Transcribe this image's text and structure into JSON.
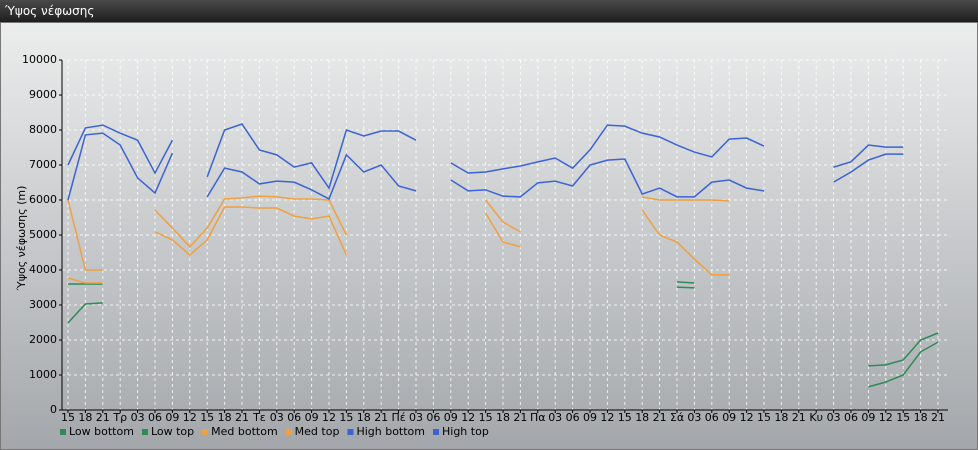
{
  "chart_data": {
    "type": "line",
    "title": "Ύψος νέφωσης",
    "y_label": "Ύψος νέφωσης (m)",
    "categories": [
      "15",
      "18",
      "21",
      "Τρ",
      "03",
      "06",
      "09",
      "12",
      "15",
      "18",
      "21",
      "Τε",
      "03",
      "06",
      "09",
      "12",
      "15",
      "18",
      "21",
      "Πέ",
      "03",
      "06",
      "09",
      "12",
      "15",
      "18",
      "21",
      "Πα",
      "03",
      "06",
      "09",
      "12",
      "15",
      "18",
      "21",
      "Σά",
      "03",
      "06",
      "09",
      "12",
      "15",
      "18",
      "21",
      "Κυ",
      "03",
      "06",
      "09",
      "12",
      "15",
      "18",
      "21"
    ],
    "ylim": [
      0,
      10000
    ],
    "yticks": [
      0,
      1000,
      2000,
      3000,
      4000,
      5000,
      6000,
      7000,
      8000,
      9000,
      10000
    ],
    "grid": true,
    "series": [
      {
        "name": "Low bottom",
        "color": "#2e8b57",
        "values": [
          2490,
          3030,
          3060,
          null,
          null,
          null,
          null,
          null,
          null,
          null,
          null,
          null,
          null,
          null,
          null,
          null,
          null,
          null,
          null,
          null,
          null,
          null,
          null,
          null,
          null,
          null,
          null,
          null,
          null,
          null,
          null,
          null,
          null,
          null,
          null,
          3510,
          3490,
          null,
          null,
          null,
          null,
          null,
          null,
          null,
          null,
          null,
          660,
          800,
          1000,
          1660,
          1940
        ]
      },
      {
        "name": "Low top",
        "color": "#2e8b57",
        "values": [
          3600,
          3600,
          3600,
          null,
          null,
          null,
          null,
          null,
          null,
          null,
          null,
          null,
          null,
          null,
          null,
          null,
          null,
          null,
          null,
          null,
          null,
          null,
          null,
          null,
          null,
          null,
          null,
          null,
          null,
          null,
          null,
          null,
          null,
          null,
          null,
          3660,
          3630,
          null,
          null,
          null,
          null,
          null,
          null,
          null,
          null,
          null,
          1260,
          1290,
          1430,
          2000,
          2200
        ]
      },
      {
        "name": "Med bottom",
        "color": "#f0a040",
        "values": [
          3770,
          3630,
          3630,
          null,
          null,
          5090,
          4860,
          4430,
          4860,
          5800,
          5800,
          5770,
          5770,
          5540,
          5460,
          5540,
          4430,
          null,
          null,
          null,
          null,
          null,
          null,
          null,
          5630,
          4800,
          4660,
          null,
          null,
          null,
          null,
          null,
          null,
          5710,
          5000,
          4800,
          4310,
          3860,
          3860,
          null,
          null,
          null,
          null,
          null,
          null,
          null,
          null,
          null,
          null,
          null,
          null
        ]
      },
      {
        "name": "Med top",
        "color": "#f0a040",
        "values": [
          6000,
          4000,
          4000,
          null,
          null,
          5710,
          5200,
          4660,
          5200,
          6030,
          6060,
          6110,
          6090,
          6030,
          6030,
          6000,
          5000,
          null,
          null,
          null,
          null,
          null,
          null,
          null,
          6000,
          5370,
          5090,
          null,
          null,
          null,
          null,
          null,
          null,
          6090,
          6000,
          6000,
          6000,
          6000,
          5970,
          null,
          null,
          null,
          null,
          null,
          null,
          null,
          null,
          null,
          null,
          null,
          null
        ]
      },
      {
        "name": "High bottom",
        "color": "#3b63d4",
        "values": [
          6000,
          7860,
          7910,
          7570,
          6630,
          6200,
          7340,
          null,
          6090,
          6910,
          6800,
          6460,
          6540,
          6510,
          6290,
          6030,
          7290,
          6800,
          7000,
          6400,
          6260,
          null,
          6570,
          6260,
          6290,
          6110,
          6090,
          6490,
          6540,
          6400,
          7000,
          7140,
          7170,
          6170,
          6340,
          6090,
          6090,
          6510,
          6570,
          6340,
          6260,
          null,
          null,
          null,
          6510,
          6800,
          7140,
          7310,
          7310,
          null,
          null
        ]
      },
      {
        "name": "High top",
        "color": "#3b63d4",
        "values": [
          7000,
          8060,
          8140,
          7910,
          7710,
          6770,
          7710,
          null,
          6660,
          8000,
          8170,
          7430,
          7290,
          6940,
          7060,
          6340,
          8000,
          7830,
          7970,
          7970,
          7710,
          null,
          7060,
          6770,
          6800,
          6890,
          6970,
          7090,
          7200,
          6910,
          7430,
          8140,
          8110,
          7910,
          7800,
          7570,
          7370,
          7230,
          7740,
          7770,
          7540,
          null,
          null,
          null,
          6940,
          7090,
          7570,
          7510,
          7510,
          null,
          null
        ]
      }
    ]
  }
}
